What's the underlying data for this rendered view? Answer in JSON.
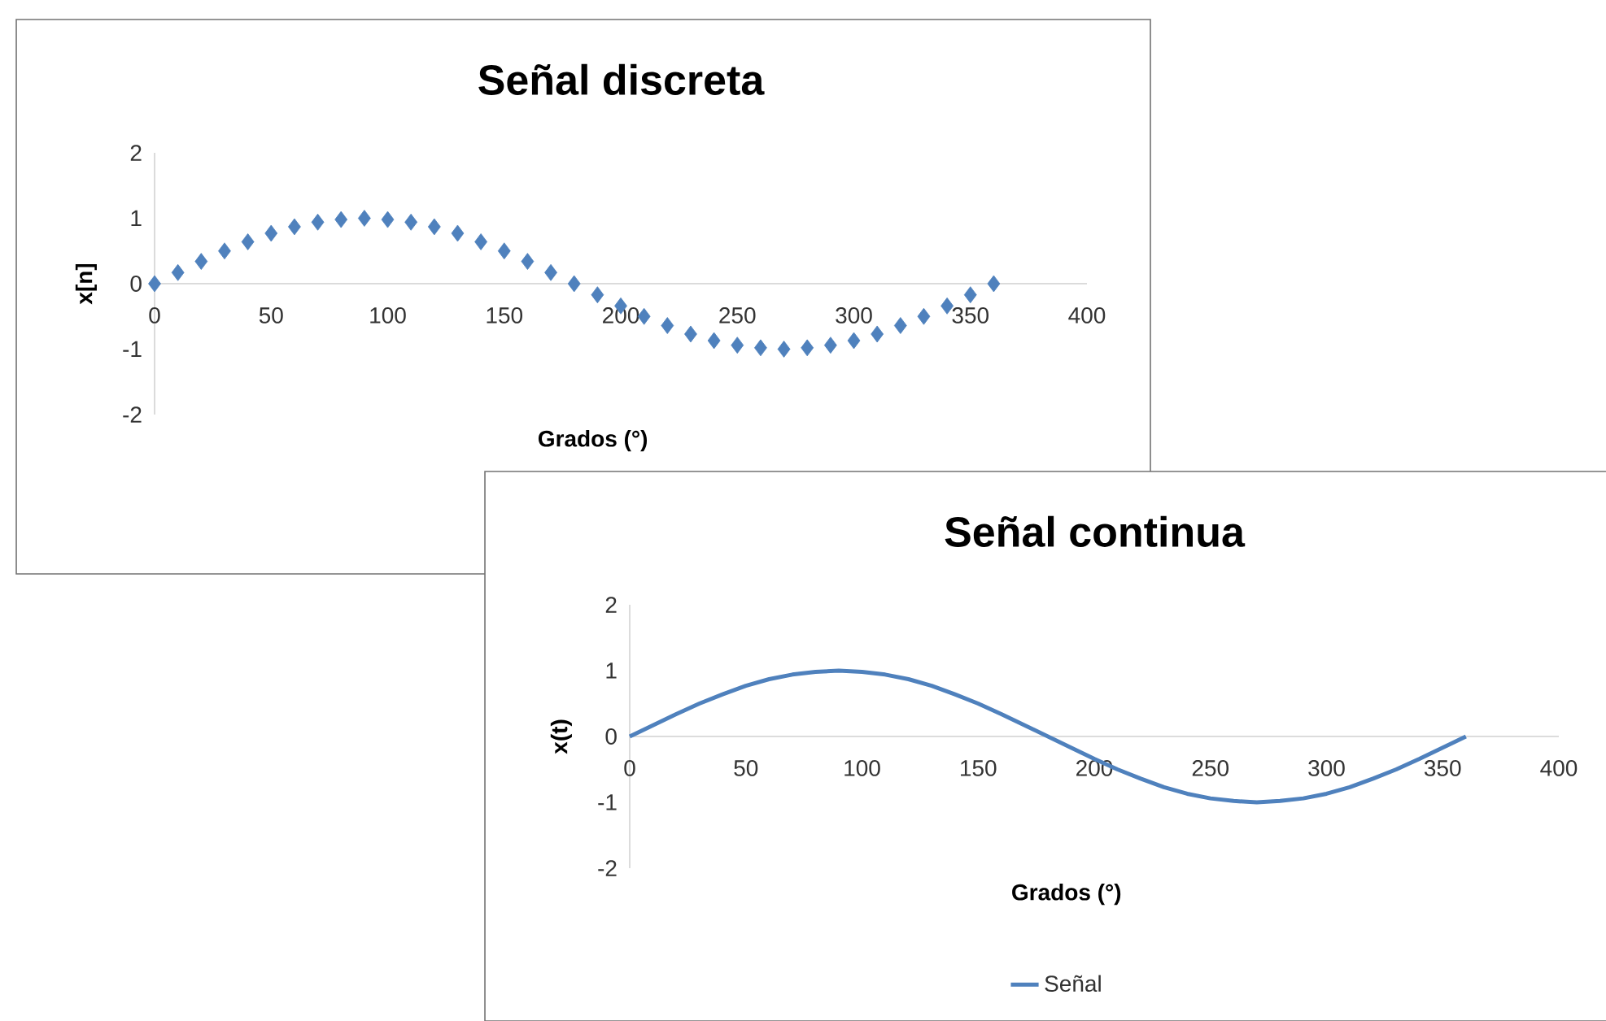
{
  "chart_data": [
    {
      "type": "scatter",
      "title": "Señal discreta",
      "xlabel": "Grados (°)",
      "ylabel": "x[n]",
      "marker": "diamond",
      "color": "#4f81bd",
      "x": [
        0,
        10,
        20,
        30,
        40,
        50,
        60,
        70,
        80,
        90,
        100,
        110,
        120,
        130,
        140,
        150,
        160,
        170,
        180,
        190,
        200,
        210,
        220,
        230,
        240,
        250,
        260,
        270,
        280,
        290,
        300,
        310,
        320,
        330,
        340,
        350,
        360
      ],
      "values": [
        0,
        0.17,
        0.34,
        0.5,
        0.64,
        0.77,
        0.87,
        0.94,
        0.98,
        1,
        0.98,
        0.94,
        0.87,
        0.77,
        0.64,
        0.5,
        0.34,
        0.17,
        0,
        -0.17,
        -0.34,
        -0.5,
        -0.64,
        -0.77,
        -0.87,
        -0.94,
        -0.98,
        -1,
        -0.98,
        -0.94,
        -0.87,
        -0.77,
        -0.64,
        -0.5,
        -0.34,
        -0.17,
        0
      ],
      "xlim": [
        0,
        400
      ],
      "ylim": [
        -2,
        2
      ],
      "xticks": [
        0,
        50,
        100,
        150,
        200,
        250,
        300,
        350,
        400
      ],
      "yticks": [
        -2,
        -1,
        0,
        1,
        2
      ]
    },
    {
      "type": "line",
      "title": "Señal continua",
      "xlabel": "Grados (°)",
      "ylabel": "x(t)",
      "marker": "none",
      "legend": "bottom",
      "x": [
        0,
        10,
        20,
        30,
        40,
        50,
        60,
        70,
        80,
        90,
        100,
        110,
        120,
        130,
        140,
        150,
        160,
        170,
        180,
        190,
        200,
        210,
        220,
        230,
        240,
        250,
        260,
        270,
        280,
        290,
        300,
        310,
        320,
        330,
        340,
        350,
        360
      ],
      "series": [
        {
          "name": "Señal",
          "color": "#4f81bd",
          "values": [
            0,
            0.17,
            0.34,
            0.5,
            0.64,
            0.77,
            0.87,
            0.94,
            0.98,
            1,
            0.98,
            0.94,
            0.87,
            0.77,
            0.64,
            0.5,
            0.34,
            0.17,
            0,
            -0.17,
            -0.34,
            -0.5,
            -0.64,
            -0.77,
            -0.87,
            -0.94,
            -0.98,
            -1,
            -0.98,
            -0.94,
            -0.87,
            -0.77,
            -0.64,
            -0.5,
            -0.34,
            -0.17,
            0
          ]
        }
      ],
      "xlim": [
        0,
        400
      ],
      "ylim": [
        -2,
        2
      ],
      "xticks": [
        0,
        50,
        100,
        150,
        200,
        250,
        300,
        350,
        400
      ],
      "yticks": [
        -2,
        -1,
        0,
        1,
        2
      ]
    }
  ]
}
